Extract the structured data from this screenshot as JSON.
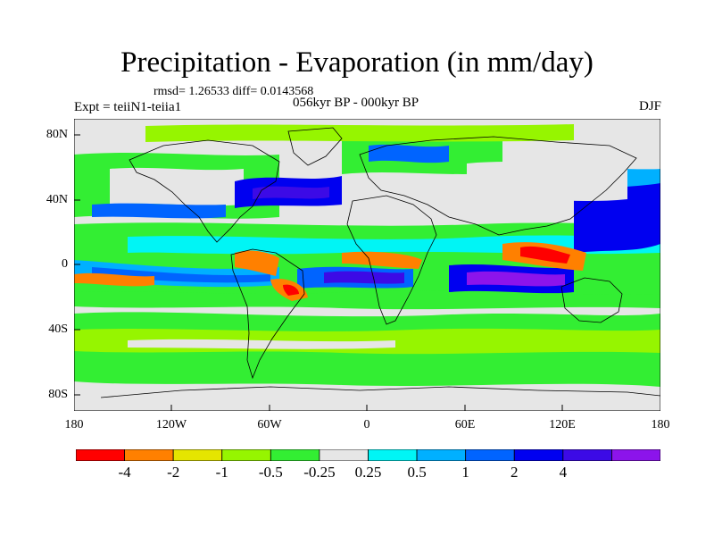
{
  "title": "Precipitation - Evaporation (in mm/day)",
  "stats": "rmsd= 1.26533 diff= 0.0143568",
  "experiment": "Expt = teiiN1-teiia1",
  "period": "056kyr BP - 000kyr BP",
  "season": "DJF",
  "map": {
    "projection": "cylindrical equidistant",
    "lon_range": [
      -180,
      180
    ],
    "lat_range": [
      -90,
      90
    ],
    "y_ticks": [
      "80N",
      "40N",
      "0",
      "40S",
      "80S"
    ],
    "x_ticks": [
      "180",
      "120W",
      "60W",
      "0",
      "60E",
      "120E",
      "180"
    ],
    "background_color": "#e6e6e6"
  },
  "colorbar": {
    "colors": [
      "#ff0000",
      "#ff8000",
      "#e5e500",
      "#96f500",
      "#33ee33",
      "#e6e6e6",
      "#00f5f5",
      "#00b0ff",
      "#0064ff",
      "#0000f0",
      "#3c0ae6",
      "#8c14eb"
    ],
    "labels": [
      "-4",
      "-2",
      "-1",
      "-0.5",
      "-0.25",
      "0.25",
      "0.5",
      "1",
      "2",
      "4"
    ]
  }
}
